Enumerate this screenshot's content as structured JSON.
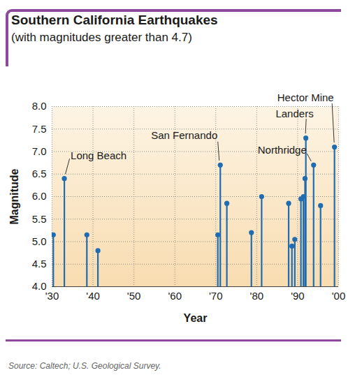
{
  "chart_data": {
    "type": "stem",
    "title": "Southern California Earthquakes",
    "subtitle": "(with magnitudes greater than 4.7)",
    "x_label": "Year",
    "y_label": "Magnitude",
    "source": "Source: Caltech; U.S. Geological Survey.",
    "x": [
      1930.3,
      1933,
      1938.5,
      1941.2,
      1970.5,
      1971.1,
      1972.7,
      1978.7,
      1981.2,
      1987.8,
      1988.6,
      1989.3,
      1990.8,
      1991.4,
      1991.8,
      1992.0,
      1993.9,
      1995.6,
      1999
    ],
    "values": [
      5.15,
      6.4,
      5.15,
      4.8,
      5.15,
      6.7,
      5.85,
      5.2,
      6.0,
      5.85,
      4.9,
      5.05,
      5.95,
      6.0,
      6.4,
      7.3,
      6.7,
      5.8,
      7.1
    ],
    "labels": [
      null,
      "Long Beach",
      null,
      null,
      null,
      "San Fernando",
      null,
      null,
      null,
      null,
      null,
      null,
      null,
      null,
      null,
      "Landers",
      "Northridge",
      null,
      "Hector Mine"
    ],
    "color": "#1f6cb0",
    "marker": "circle",
    "xlim": [
      1930,
      2000
    ],
    "xticks": [
      {
        "value": 1930,
        "label": "'30"
      },
      {
        "value": 1940,
        "label": "'40"
      },
      {
        "value": 1950,
        "label": "'50"
      },
      {
        "value": 1960,
        "label": "'60"
      },
      {
        "value": 1970,
        "label": "'70"
      },
      {
        "value": 1980,
        "label": "'80"
      },
      {
        "value": 1990,
        "label": "'90"
      },
      {
        "value": 2000,
        "label": "'00"
      }
    ],
    "ylim": [
      4,
      8
    ],
    "yticks": [
      {
        "value": 4,
        "label": "4.0"
      },
      4.5,
      {
        "value": 5,
        "label": "5.0"
      },
      5.5,
      {
        "value": 6,
        "label": "6.0"
      },
      6.5,
      {
        "value": 7,
        "label": "7.0"
      },
      7.5,
      {
        "value": 8,
        "label": "8.0"
      }
    ],
    "grid": true
  }
}
